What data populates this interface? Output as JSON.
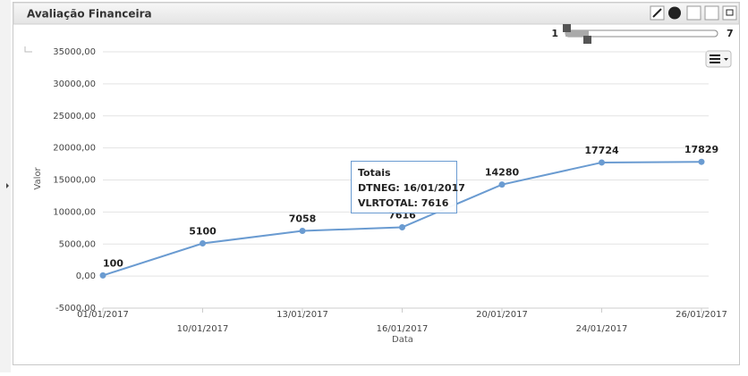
{
  "panel": {
    "title": "Avaliação Financeira"
  },
  "slider": {
    "min": 1,
    "max": 7
  },
  "tooltip": {
    "title": "Totais",
    "lines": [
      "DTNEG: 16/01/2017",
      "VLRTOTAL: 7616"
    ]
  },
  "chart_data": {
    "type": "line",
    "categories": [
      "01/01/2017",
      "10/01/2017",
      "13/01/2017",
      "16/01/2017",
      "20/01/2017",
      "24/01/2017",
      "26/01/2017"
    ],
    "series": [
      {
        "name": "Totais",
        "color": "#6a9bd1",
        "values": [
          100,
          5100,
          7058,
          7616,
          14280,
          17724,
          17829
        ]
      }
    ],
    "ylim": [
      -5000,
      35000
    ],
    "yticks": [
      {
        "value": -5000,
        "label": "-5000,00"
      },
      {
        "value": 0,
        "label": "0,00"
      },
      {
        "value": 5000,
        "label": "5000,00"
      },
      {
        "value": 10000,
        "label": "10000,00"
      },
      {
        "value": 15000,
        "label": "15000,00"
      },
      {
        "value": 20000,
        "label": "20000,00"
      },
      {
        "value": 25000,
        "label": "25000,00"
      },
      {
        "value": 30000,
        "label": "30000,00"
      },
      {
        "value": 35000,
        "label": "35000,00"
      }
    ],
    "x_label": "Data",
    "y_label": "Valor",
    "grid": true
  }
}
